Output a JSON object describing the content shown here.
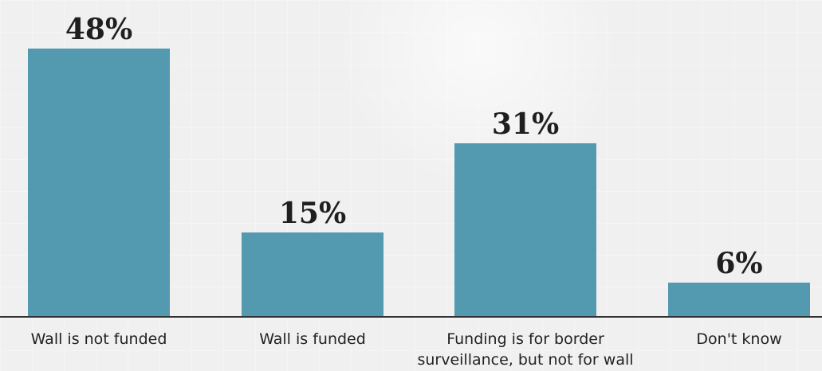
{
  "chart_data": {
    "type": "bar",
    "categories": [
      [
        "Wall is not funded"
      ],
      [
        "Wall is funded"
      ],
      [
        "Funding is for border",
        "surveillance, but not for wall"
      ],
      [
        "Don't know"
      ]
    ],
    "values": [
      48,
      15,
      31,
      6
    ],
    "value_labels": [
      "48%",
      "15%",
      "31%",
      "6%"
    ],
    "unit": "%",
    "ylim": [
      0,
      50
    ],
    "grid": false,
    "legend": "none",
    "bar_color": "#5399b0",
    "axis_color": "#333333"
  }
}
